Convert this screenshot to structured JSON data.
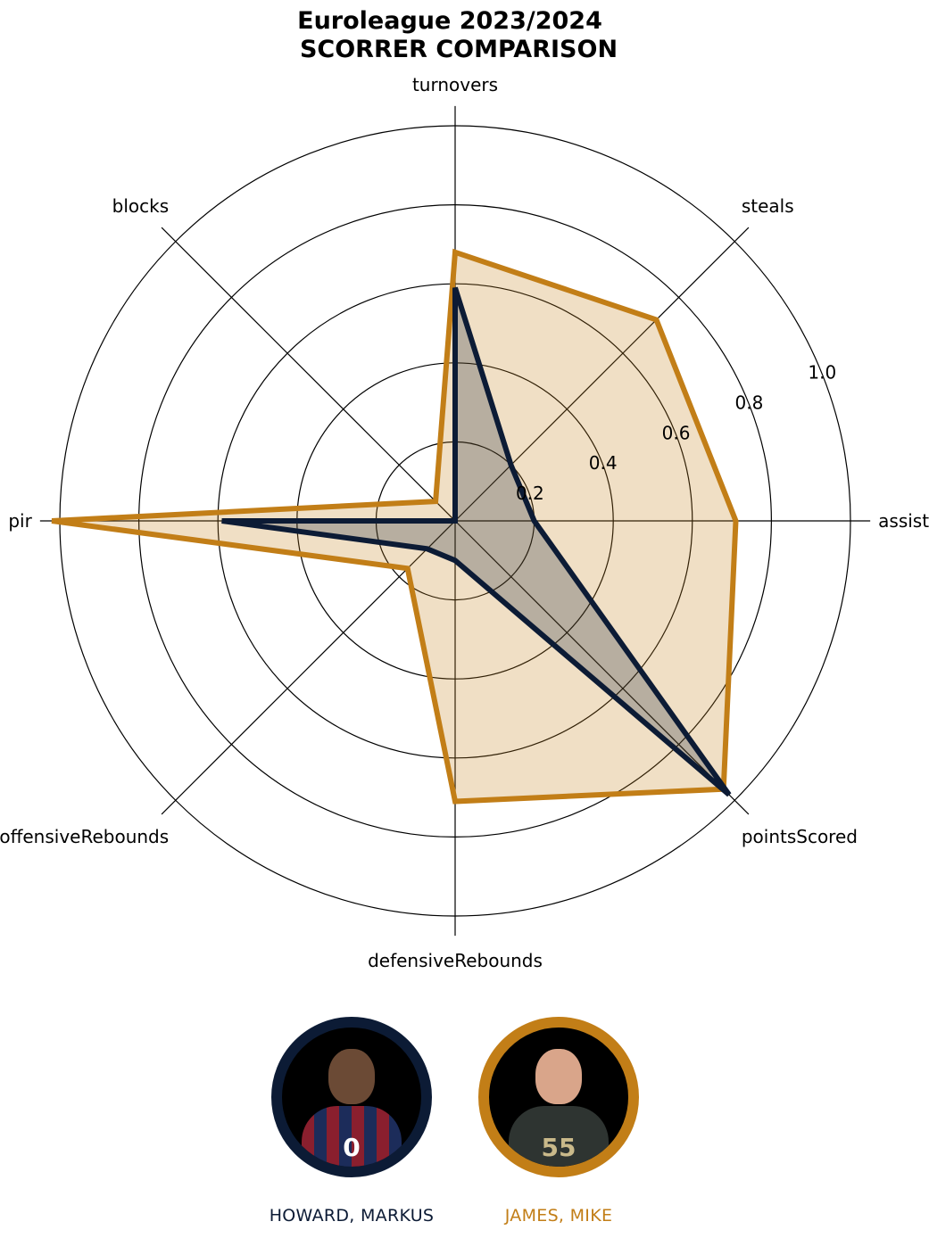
{
  "chart_data": {
    "type": "radar",
    "title": "Euroleague 2023/2024\nSCORRER COMPARISON",
    "axes": [
      "assists",
      "steals",
      "turnovers",
      "blocks",
      "pir",
      "offensiveRebounds",
      "defensiveRebounds",
      "pointsScored"
    ],
    "rlim": [
      0,
      1.0
    ],
    "rticks": [
      0.2,
      0.4,
      0.6,
      0.8,
      1.0
    ],
    "rtick_labels": [
      "0.2",
      "0.4",
      "0.6",
      "0.8",
      "1.0"
    ],
    "grid": true,
    "series": [
      {
        "name": "HOWARD, MARKUS",
        "color": "#0c1b35",
        "fill_opacity": 0.25,
        "values": [
          0.2,
          0.2,
          0.59,
          0.0,
          0.59,
          0.1,
          0.1,
          0.98
        ]
      },
      {
        "name": "JAMES, MIKE",
        "color": "#c27e17",
        "fill_opacity": 0.25,
        "values": [
          0.71,
          0.72,
          0.68,
          0.07,
          1.02,
          0.17,
          0.71,
          0.96
        ]
      }
    ]
  },
  "players": [
    {
      "name": "HOWARD, MARKUS",
      "color": "#0c1b35",
      "jersey_number": "0",
      "photo": "player-photo"
    },
    {
      "name": "JAMES, MIKE",
      "color": "#c27e17",
      "jersey_number": "55",
      "photo": "player-photo"
    }
  ]
}
